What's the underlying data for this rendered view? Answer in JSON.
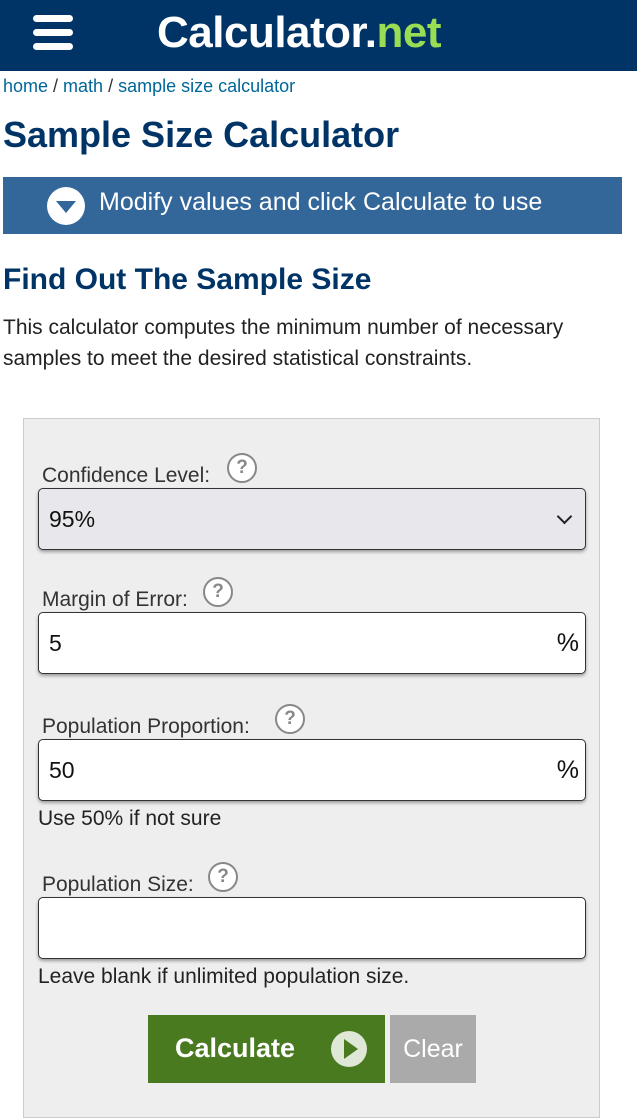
{
  "header": {
    "logo_main": "Calculator",
    "logo_dot": ".",
    "logo_net": "net",
    "menu_icon": "hamburger-menu-icon"
  },
  "breadcrumb": {
    "items": [
      "home",
      "math",
      "sample size calculator"
    ],
    "separator": " / "
  },
  "page_title": "Sample Size Calculator",
  "modify_bar": {
    "text": "Modify values and click Calculate to use",
    "icon": "chevron-down-circle-icon"
  },
  "section_title": "Find Out The Sample Size",
  "intro": "This calculator computes the minimum number of necessary samples to meet the desired statistical constraints.",
  "form": {
    "confidence_level": {
      "label": "Confidence Level:",
      "value": "95%"
    },
    "margin_of_error": {
      "label": "Margin of Error:",
      "value": "5",
      "unit": "%"
    },
    "population_proportion": {
      "label": "Population Proportion:",
      "value": "50",
      "unit": "%",
      "hint": "Use 50% if not sure"
    },
    "population_size": {
      "label": "Population Size:",
      "value": "",
      "hint": "Leave blank if unlimited population size."
    },
    "help_symbol": "?"
  },
  "buttons": {
    "calculate": "Calculate",
    "clear": "Clear"
  },
  "colors": {
    "header_bg": "#003366",
    "modify_bar_bg": "#336699",
    "calculate_bg": "#4a7a1f",
    "clear_bg": "#aaaaaa",
    "logo_net": "#99dd55"
  }
}
